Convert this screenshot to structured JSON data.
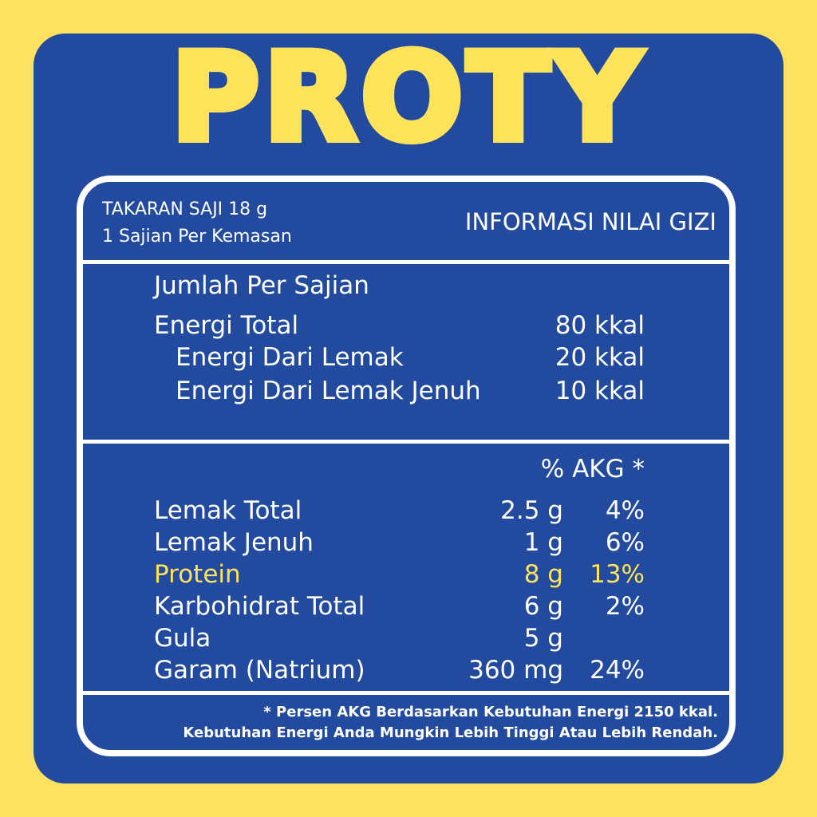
{
  "brand": "PROTY",
  "header": {
    "serving_size": "TAKARAN SAJI 18 g",
    "servings": "1 Sajian Per Kemasan",
    "title": "INFORMASI NILAI GIZI"
  },
  "energy": {
    "heading": "Jumlah Per Sajian",
    "rows": [
      {
        "label": "Energi Total",
        "value": "80 kkal"
      },
      {
        "label": "Energi Dari Lemak",
        "value": "20 kkal"
      },
      {
        "label": "Energi Dari Lemak Jenuh",
        "value": "10 kkal"
      }
    ]
  },
  "nutrients": {
    "akg_header": "% AKG *",
    "rows": [
      {
        "label": "Lemak Total",
        "amount": "2.5 g",
        "akg": "4%"
      },
      {
        "label": "Lemak Jenuh",
        "amount": "1 g",
        "akg": "6%"
      },
      {
        "label": "Protein",
        "amount": "8 g",
        "akg": "13%",
        "highlight": true
      },
      {
        "label": "Karbohidrat Total",
        "amount": "6 g",
        "akg": "2%"
      },
      {
        "label": "Gula",
        "amount": "5 g",
        "akg": ""
      },
      {
        "label": "Garam (Natrium)",
        "amount": "360 mg",
        "akg": "24%"
      }
    ]
  },
  "footnote": [
    "* Persen AKG Berdasarkan Kebutuhan Energi 2150 kkal.",
    "Kebutuhan Energi Anda Mungkin Lebih Tinggi Atau Lebih Rendah."
  ],
  "colors": {
    "background": "#fde160",
    "panel": "#224a9f",
    "accent": "#fde35a"
  }
}
